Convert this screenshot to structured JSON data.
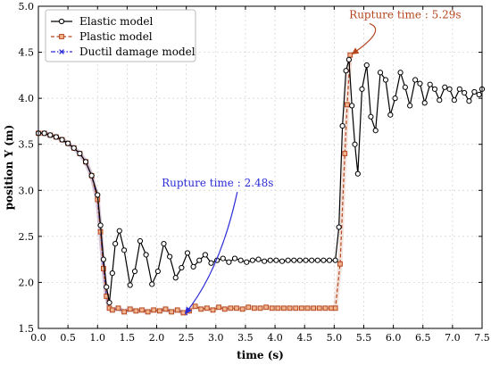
{
  "chart_data": {
    "type": "line",
    "xlabel": "time (s)",
    "ylabel": "position Y (m)",
    "xlim": [
      0,
      7.5
    ],
    "ylim": [
      1.5,
      5.0
    ],
    "xticks": [
      0.0,
      0.5,
      1.0,
      1.5,
      2.0,
      2.5,
      3.0,
      3.5,
      4.0,
      4.5,
      5.0,
      5.5,
      6.0,
      6.5,
      7.0,
      7.5
    ],
    "xtick_labels": [
      "0.0",
      "0.5",
      "1.0",
      "1.5",
      "2.0",
      "2.5",
      "3.0",
      "3.5",
      "4.0",
      "4.5",
      "5.0",
      "5.5",
      "6.0",
      "6.5",
      "7.0",
      "7.5"
    ],
    "yticks": [
      1.5,
      2.0,
      2.5,
      3.0,
      3.5,
      4.0,
      4.5,
      5.0
    ],
    "ytick_labels": [
      "1.5",
      "2.0",
      "2.5",
      "3.0",
      "3.5",
      "4.0",
      "4.5",
      "5.0"
    ],
    "grid": true,
    "legend_position": "top-left",
    "series": [
      {
        "name": "Elastic model",
        "color": "#000000",
        "line_style": "solid",
        "marker": "circle",
        "x": [
          0.0,
          0.1,
          0.2,
          0.3,
          0.4,
          0.5,
          0.6,
          0.7,
          0.8,
          0.9,
          1.0,
          1.05,
          1.1,
          1.15,
          1.2,
          1.25,
          1.3,
          1.37,
          1.45,
          1.55,
          1.63,
          1.72,
          1.82,
          1.92,
          2.02,
          2.12,
          2.22,
          2.32,
          2.42,
          2.52,
          2.62,
          2.72,
          2.82,
          2.92,
          3.02,
          3.12,
          3.22,
          3.32,
          3.42,
          3.52,
          3.62,
          3.72,
          3.82,
          3.92,
          4.02,
          4.12,
          4.22,
          4.32,
          4.42,
          4.52,
          4.62,
          4.72,
          4.82,
          4.92,
          5.02,
          5.08,
          5.14,
          5.2,
          5.25,
          5.3,
          5.35,
          5.4,
          5.47,
          5.55,
          5.62,
          5.7,
          5.78,
          5.87,
          5.95,
          6.03,
          6.12,
          6.2,
          6.28,
          6.37,
          6.45,
          6.53,
          6.62,
          6.7,
          6.78,
          6.87,
          6.95,
          7.03,
          7.12,
          7.2,
          7.28,
          7.37,
          7.45,
          7.5
        ],
        "y": [
          3.62,
          3.62,
          3.6,
          3.58,
          3.55,
          3.51,
          3.46,
          3.4,
          3.31,
          3.16,
          2.95,
          2.62,
          2.25,
          1.95,
          1.78,
          2.1,
          2.42,
          2.56,
          2.35,
          1.97,
          2.12,
          2.45,
          2.3,
          1.98,
          2.12,
          2.42,
          2.28,
          2.05,
          2.16,
          2.32,
          2.17,
          2.24,
          2.3,
          2.21,
          2.24,
          2.26,
          2.22,
          2.26,
          2.24,
          2.22,
          2.24,
          2.25,
          2.23,
          2.24,
          2.24,
          2.23,
          2.24,
          2.24,
          2.24,
          2.24,
          2.24,
          2.24,
          2.24,
          2.24,
          2.24,
          2.6,
          3.7,
          4.3,
          4.42,
          3.92,
          3.5,
          3.18,
          4.1,
          4.36,
          3.8,
          3.65,
          4.28,
          4.2,
          3.82,
          4.0,
          4.28,
          4.12,
          3.92,
          4.2,
          4.16,
          3.95,
          4.15,
          4.1,
          3.98,
          4.12,
          4.1,
          3.98,
          4.1,
          4.06,
          3.97,
          4.07,
          4.04,
          4.1
        ]
      },
      {
        "name": "Plastic model",
        "color": "#b5461d",
        "line_style": "dashed",
        "marker": "square",
        "x": [
          0.0,
          0.1,
          0.2,
          0.3,
          0.4,
          0.5,
          0.6,
          0.7,
          0.8,
          0.9,
          1.0,
          1.05,
          1.1,
          1.15,
          1.2,
          1.25,
          1.35,
          1.45,
          1.55,
          1.65,
          1.75,
          1.85,
          1.95,
          2.05,
          2.15,
          2.25,
          2.35,
          2.45,
          2.55,
          2.65,
          2.75,
          2.85,
          2.95,
          3.05,
          3.15,
          3.25,
          3.35,
          3.45,
          3.55,
          3.65,
          3.75,
          3.85,
          3.95,
          4.05,
          4.15,
          4.25,
          4.35,
          4.45,
          4.55,
          4.65,
          4.75,
          4.85,
          4.95,
          5.02,
          5.1,
          5.18,
          5.22,
          5.27
        ],
        "y": [
          3.62,
          3.62,
          3.6,
          3.58,
          3.55,
          3.51,
          3.46,
          3.4,
          3.31,
          3.16,
          2.9,
          2.55,
          2.15,
          1.85,
          1.72,
          1.7,
          1.72,
          1.68,
          1.71,
          1.69,
          1.7,
          1.68,
          1.7,
          1.69,
          1.71,
          1.68,
          1.7,
          1.67,
          1.69,
          1.74,
          1.71,
          1.72,
          1.7,
          1.73,
          1.71,
          1.72,
          1.72,
          1.71,
          1.73,
          1.72,
          1.72,
          1.73,
          1.72,
          1.72,
          1.72,
          1.72,
          1.72,
          1.72,
          1.72,
          1.72,
          1.72,
          1.72,
          1.72,
          1.72,
          2.2,
          3.4,
          3.93,
          4.47
        ]
      },
      {
        "name": "Ductil damage model",
        "color": "#2b2bd6",
        "line_style": "dashdot",
        "marker": "x",
        "x": [
          0.0,
          0.1,
          0.2,
          0.3,
          0.4,
          0.5,
          0.6,
          0.7,
          0.8,
          0.9,
          1.0,
          1.05,
          1.1,
          1.15,
          1.2,
          1.25,
          1.35,
          1.45,
          1.55,
          1.65,
          1.75,
          1.85,
          1.95,
          2.05,
          2.15,
          2.25,
          2.35,
          2.45,
          2.48
        ],
        "y": [
          3.62,
          3.62,
          3.6,
          3.58,
          3.55,
          3.51,
          3.46,
          3.4,
          3.31,
          3.16,
          2.9,
          2.55,
          2.15,
          1.85,
          1.72,
          1.7,
          1.72,
          1.68,
          1.71,
          1.69,
          1.7,
          1.68,
          1.7,
          1.69,
          1.71,
          1.68,
          1.7,
          1.67,
          1.67
        ]
      }
    ],
    "annotations": [
      {
        "text": "Rupture time : 2.48s",
        "color": "#2b2bd6",
        "text_x": 3.03,
        "text_y": 3.04,
        "point_x": 2.48,
        "point_y": 1.66
      },
      {
        "text": "Rupture time : 5.29s",
        "color": "#b5461d",
        "text_x": 6.2,
        "text_y": 4.87,
        "point_x": 5.3,
        "point_y": 4.48
      }
    ]
  }
}
